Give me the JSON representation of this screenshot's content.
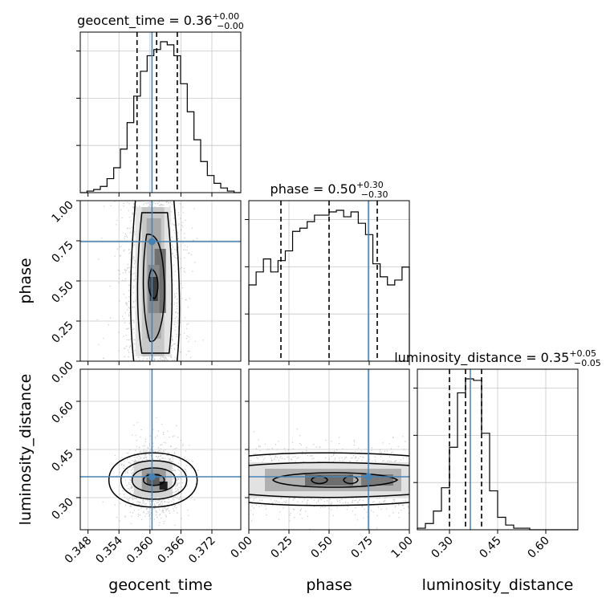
{
  "chart_data": {
    "type": "corner",
    "truth_color": "#4682b4",
    "parameters": [
      {
        "name": "geocent_time",
        "title_value": "0.36",
        "title_plus": "+0.00",
        "title_minus": "−0.00",
        "range": [
          0.3465,
          0.3776
        ],
        "ticks": [
          "0.348",
          "0.354",
          "0.360",
          "0.366",
          "0.372"
        ],
        "tick_values": [
          0.348,
          0.354,
          0.36,
          0.366,
          0.372
        ],
        "truth": 0.3604,
        "quantiles": [
          0.3575,
          0.3613,
          0.3653
        ]
      },
      {
        "name": "phase",
        "title_value": "0.50",
        "title_plus": "+0.30",
        "title_minus": "−0.30",
        "range": [
          0.0,
          1.0
        ],
        "ticks": [
          "0.00",
          "0.25",
          "0.50",
          "0.75",
          "1.00"
        ],
        "tick_values": [
          0.0,
          0.25,
          0.5,
          0.75,
          1.0
        ],
        "truth": 0.745,
        "quantiles": [
          0.2,
          0.5,
          0.8
        ]
      },
      {
        "name": "luminosity_distance",
        "title_value": "0.35",
        "title_plus": "+0.05",
        "title_minus": "−0.05",
        "range": [
          0.2,
          0.7
        ],
        "ticks": [
          "0.30",
          "0.45",
          "0.60"
        ],
        "tick_values": [
          0.3,
          0.45,
          0.6
        ],
        "truth": 0.365,
        "quantiles": [
          0.3,
          0.35,
          0.4
        ]
      }
    ],
    "histograms": {
      "geocent_time": [
        0,
        1,
        2,
        4,
        9,
        16,
        28,
        45,
        62,
        78,
        88,
        92,
        97,
        95,
        88,
        70,
        52,
        34,
        20,
        11,
        6,
        3,
        1,
        0
      ],
      "phase": [
        47,
        55,
        63,
        55,
        62,
        68,
        80,
        82,
        86,
        90,
        90,
        92,
        93,
        89,
        92,
        85,
        78,
        60,
        52,
        47,
        50,
        58
      ],
      "luminosity_distance": [
        1,
        4,
        12,
        27,
        53,
        88,
        97,
        96,
        62,
        25,
        8,
        3,
        1,
        1,
        0,
        0,
        0,
        0,
        0,
        0
      ]
    }
  }
}
